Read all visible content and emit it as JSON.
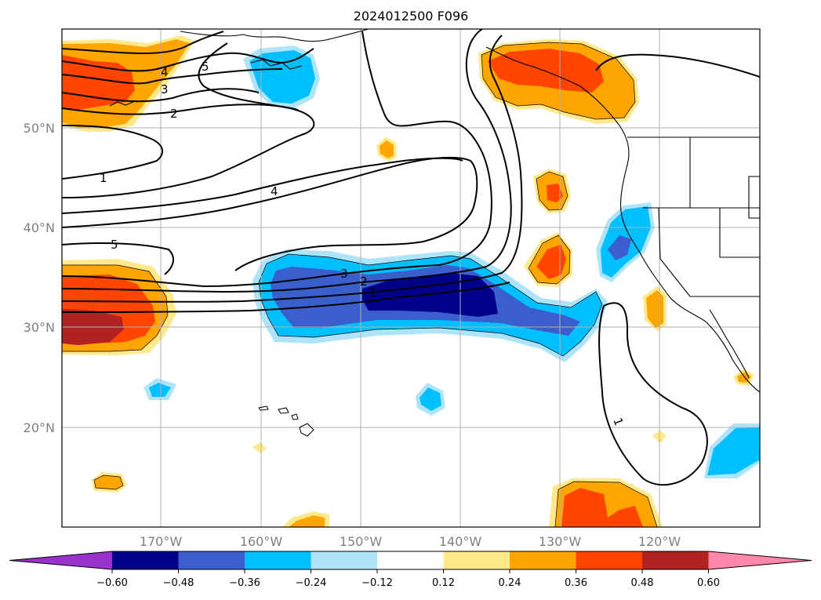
{
  "title": "2024012500 F096",
  "latitude_labels": [
    "50°N",
    "40°N",
    "30°N",
    "20°N"
  ],
  "longitude_labels": [
    "170°W",
    "160°W",
    "150°W",
    "140°W",
    "130°W",
    "120°W"
  ],
  "colorbar": {
    "ticks": [
      "−0.60",
      "−0.48",
      "−0.36",
      "−0.24",
      "−0.12",
      "0.12",
      "0.24",
      "0.36",
      "0.48",
      "0.60"
    ],
    "colors": [
      "#9932cc",
      "#00008b",
      "#3a5fcd",
      "#00bfff",
      "#aee4fa",
      "#ffffff",
      "#ffe98a",
      "#ffa500",
      "#ff4500",
      "#b22222",
      "#ff88aa"
    ]
  },
  "contour_labels": [
    "5",
    "4",
    "3",
    "2",
    "1",
    "4",
    "5",
    "3",
    "2",
    "1",
    "1"
  ],
  "fill_colors": {
    "neg_1": "#aee4fa",
    "neg_2": "#00bfff",
    "neg_3": "#3a5fcd",
    "neg_4": "#00008b",
    "pos_1": "#ffe98a",
    "pos_2": "#ffa500",
    "pos_3": "#ff4500",
    "pos_4": "#b22222"
  }
}
